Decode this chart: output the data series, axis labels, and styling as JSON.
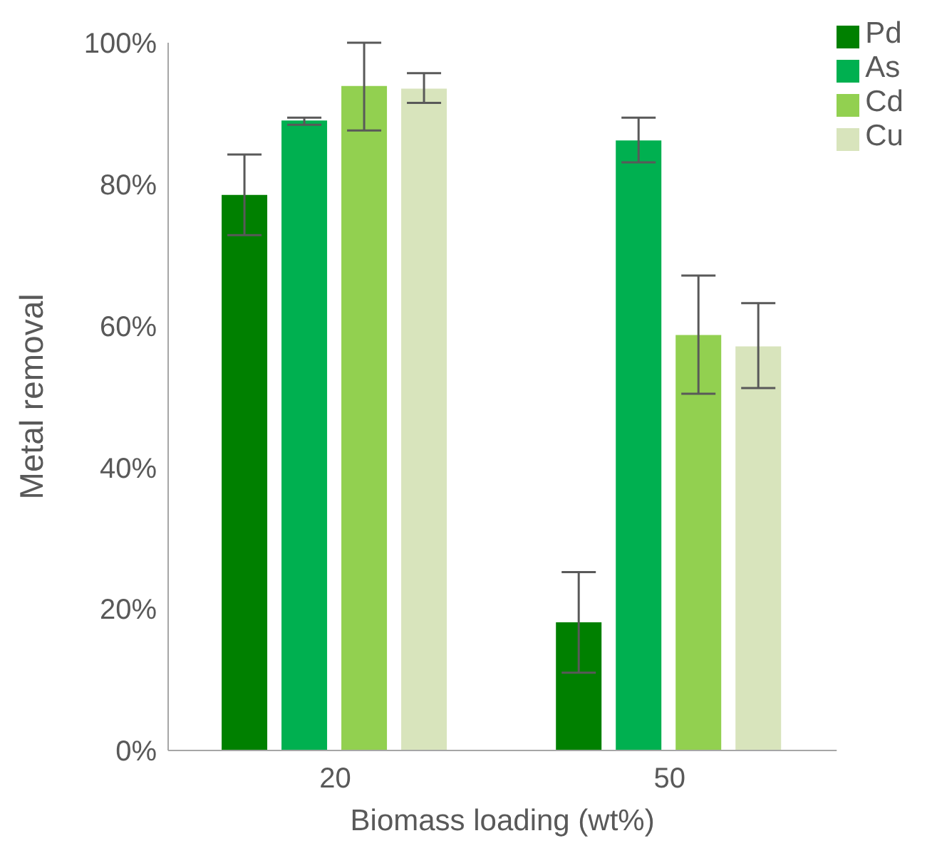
{
  "chart_data": {
    "type": "bar",
    "xlabel": "Biomass loading (wt%)",
    "ylabel": "Metal removal",
    "categories": [
      "20",
      "50"
    ],
    "series": [
      {
        "name": "Pd",
        "color": "#008000",
        "values": [
          78.5,
          18.1
        ],
        "errors": [
          [
            72.8,
            84.2
          ],
          [
            11.0,
            25.2
          ]
        ]
      },
      {
        "name": "As",
        "color": "#00b050",
        "values": [
          89.0,
          86.2
        ],
        "errors": [
          [
            88.4,
            89.4
          ],
          [
            83.1,
            89.4
          ]
        ]
      },
      {
        "name": "Cd",
        "color": "#92d050",
        "values": [
          93.9,
          58.7
        ],
        "errors": [
          [
            87.6,
            100
          ],
          [
            50.4,
            67.1
          ]
        ]
      },
      {
        "name": "Cu",
        "color": "#d8e4bc",
        "values": [
          93.5,
          57.1
        ],
        "errors": [
          [
            91.5,
            95.7
          ],
          [
            51.2,
            63.2
          ]
        ]
      }
    ],
    "ylim": [
      0,
      100
    ],
    "yticks": [
      {
        "value": 0,
        "label": "0%"
      },
      {
        "value": 20,
        "label": "20%"
      },
      {
        "value": 40,
        "label": "40%"
      },
      {
        "value": 60,
        "label": "60%"
      },
      {
        "value": 80,
        "label": "80%"
      },
      {
        "value": 100,
        "label": "100%"
      }
    ],
    "grid": false,
    "legend": "top right"
  }
}
